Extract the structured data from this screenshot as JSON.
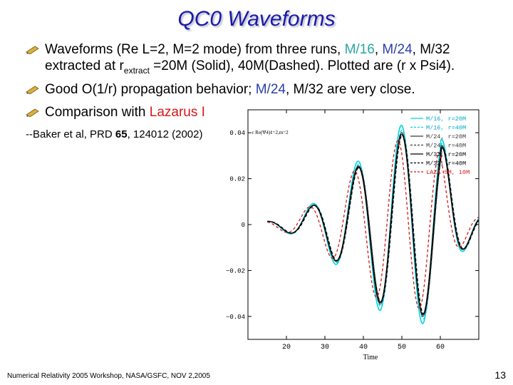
{
  "slide": {
    "title": "QC0 Waveforms",
    "bullets": [
      {
        "pre": "Waveforms (Re L=2, M=2 mode) from three runs, ",
        "m16": "M/16",
        "sep1": ", ",
        "m24": "M/24",
        "sep2": ", M/32",
        "line2a": "extracted at r",
        "sub": "extract",
        "line2b": " =20M (Solid), 40M(Dashed). Plotted are (r x Psi4)."
      },
      {
        "pre": "Good O(1/r) propagation behavior; ",
        "m24": "M/24",
        "post": ", M/32 are very close."
      },
      {
        "pre": "Comparison with ",
        "red": "Lazarus I"
      }
    ],
    "reference": {
      "pre": "--Baker et al, PRD ",
      "vol": "65",
      "post": ", 124012 (2002)"
    },
    "footer": "Numerical Relativity 2005 Workshop, NASA/GSFC, NOV 2,2005",
    "page_number": "13"
  },
  "chart_data": {
    "type": "line",
    "xlabel": "Time",
    "ylabel": "r Re(Ψ4)ℓ=2,m=2",
    "xlim": [
      10,
      70
    ],
    "ylim": [
      -0.05,
      0.05
    ],
    "xticks": [
      20,
      30,
      40,
      50,
      60
    ],
    "yticks": [
      0.04,
      0.02,
      0,
      -0.02,
      -0.04
    ],
    "ytick_labels": [
      "0.04",
      "0.02",
      "0",
      "−0.02",
      "−0.04"
    ],
    "legend_position": "top-right",
    "series": [
      {
        "name": "M/16, r=20M",
        "color": "#00d4e0",
        "dash": "solid",
        "amp": 1.1,
        "tshift": 0.0,
        "width": 1.6
      },
      {
        "name": "M/16, r=40M",
        "color": "#00d4e0",
        "dash": "dashed",
        "amp": 1.05,
        "tshift": 0.2,
        "width": 1.4
      },
      {
        "name": "M/24, r=20M",
        "color": "#3a3a3a",
        "dash": "solid",
        "amp": 1.02,
        "tshift": 0.1,
        "width": 1.2
      },
      {
        "name": "M/24, r=40M",
        "color": "#3a3a3a",
        "dash": "dashed",
        "amp": 1.0,
        "tshift": 0.3,
        "width": 1.2
      },
      {
        "name": "M/32, r=20M",
        "color": "#000000",
        "dash": "solid",
        "amp": 1.0,
        "tshift": 0.05,
        "width": 1.2
      },
      {
        "name": "M/32, r=40M",
        "color": "#000000",
        "dash": "dashed",
        "amp": 0.99,
        "tshift": 0.25,
        "width": 1.2
      },
      {
        "name": "LAZA 5M, 10M",
        "color": "#d81818",
        "dash": "dashed",
        "amp": 0.93,
        "tshift": -0.9,
        "width": 1.3
      }
    ]
  }
}
